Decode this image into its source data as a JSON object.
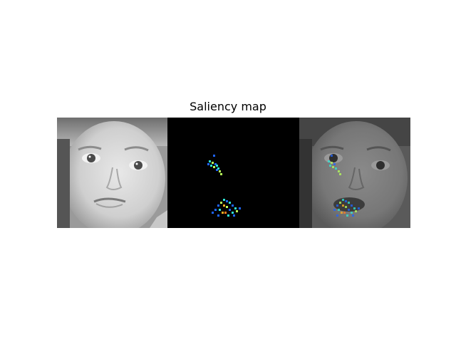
{
  "figure": {
    "title": "Saliency map"
  },
  "panels": [
    {
      "name": "original-face-image",
      "description_icon": "grayscale-face-image"
    },
    {
      "name": "saliency-map-image",
      "description_icon": "saliency-heatmap-image"
    },
    {
      "name": "overlay-image",
      "description_icon": "face-with-saliency-overlay"
    }
  ],
  "colors": {
    "background": "#ffffff",
    "saliency_background": "#000000",
    "heat_low": "#1e64ff",
    "heat_mid": "#2ee6d6",
    "heat_high": "#b6ff5a",
    "heat_peak": "#ffb01e"
  }
}
